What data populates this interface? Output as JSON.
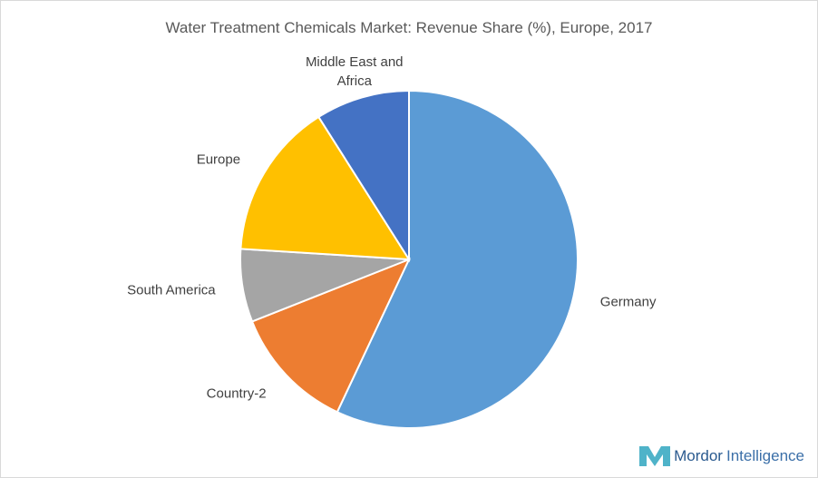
{
  "chart_data": {
    "type": "pie",
    "title": "Water Treatment Chemicals Market: Revenue Share (%), Europe, 2017",
    "categories": [
      "Germany",
      "Country-2",
      "South America",
      "Europe",
      "Middle East and Africa"
    ],
    "values": [
      57,
      12,
      7,
      15,
      9
    ],
    "colors": [
      "#5b9bd5",
      "#ed7d31",
      "#a5a5a5",
      "#ffc000",
      "#4472c4"
    ]
  },
  "logo": {
    "brand": "Mordor",
    "suffix": "Intelligence"
  }
}
